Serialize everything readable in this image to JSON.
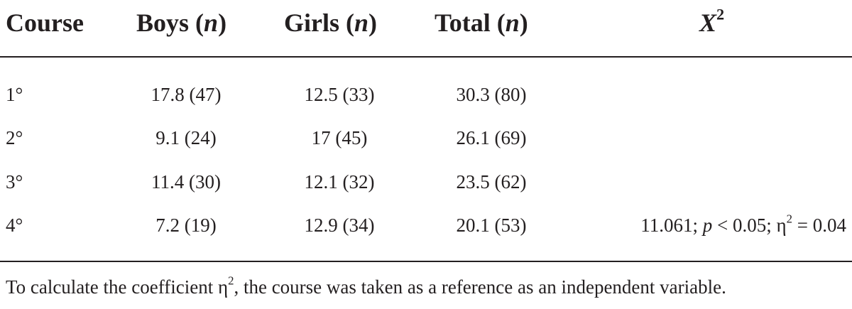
{
  "header": {
    "course": "Course",
    "boys": "Boys",
    "girls": "Girls",
    "total": "Total",
    "n": "n",
    "x2_symbol": "X",
    "x2_sup": "2"
  },
  "rows": [
    {
      "course": "1°",
      "boys": "17.8 (47)",
      "girls": "12.5 (33)",
      "total": "30.3 (80)"
    },
    {
      "course": "2°",
      "boys": "9.1 (24)",
      "girls": "17 (45)",
      "total": "26.1 (69)"
    },
    {
      "course": "3°",
      "boys": "11.4 (30)",
      "girls": "12.1 (32)",
      "total": "23.5 (62)"
    },
    {
      "course": "4°",
      "boys": "7.2 (19)",
      "girls": "12.9 (34)",
      "total": "20.1 (53)"
    }
  ],
  "stat": {
    "chi": "11.061; ",
    "p_symbol": "p",
    "p_rest": " < 0.05; η",
    "eta_sup": "2",
    "eta_value": " = 0.04"
  },
  "footnote": {
    "before": "To calculate the coefficient η",
    "sup": "2",
    "after": ", the course was taken as a reference as an independent variable."
  }
}
